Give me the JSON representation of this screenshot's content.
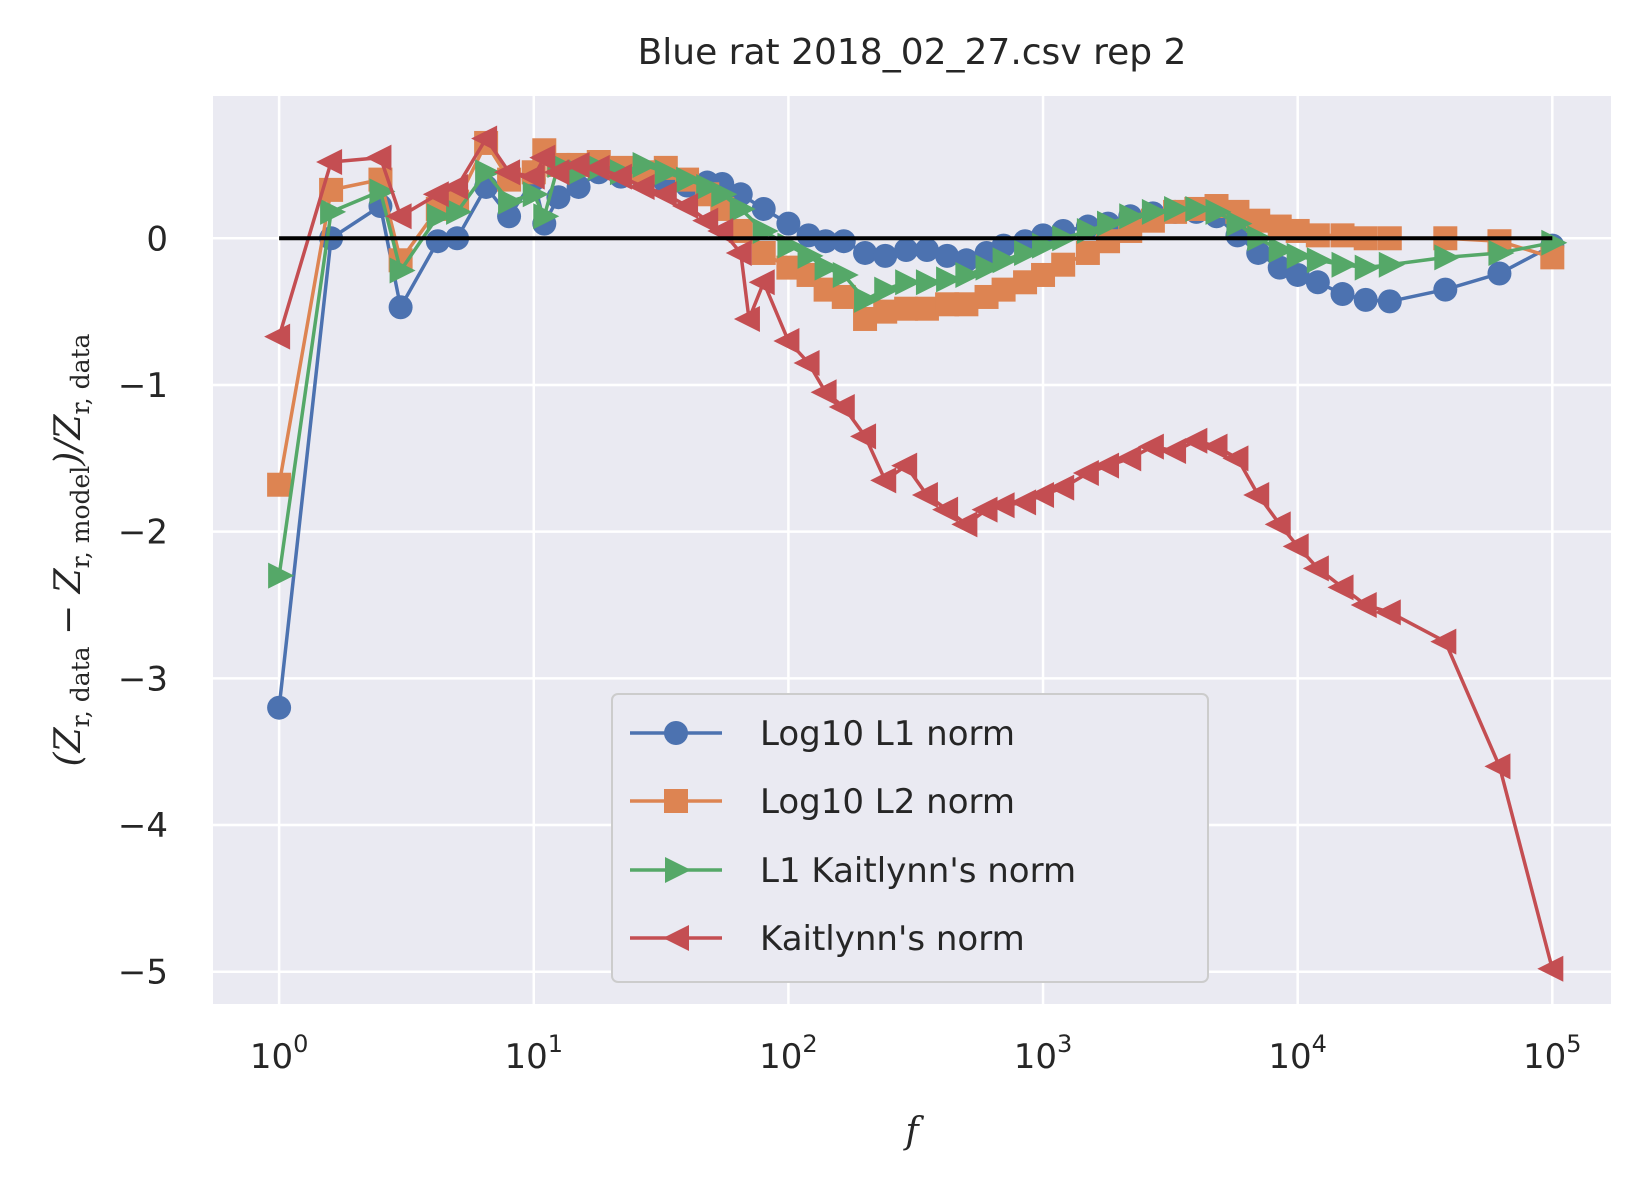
{
  "chart_data": {
    "type": "line",
    "title": "Blue rat 2018_02_27.csv rep 2",
    "xlabel": "f",
    "ylabel_parts": [
      "(Z",
      "r, data",
      " − Z",
      "r, model",
      ")/Z",
      "r, data"
    ],
    "x_scale": "log",
    "xlim": [
      0.55,
      170000
    ],
    "ylim": [
      -5.22,
      0.97
    ],
    "x_ticks": [
      {
        "value": 1,
        "base": "10",
        "exp": "0"
      },
      {
        "value": 10,
        "base": "10",
        "exp": "1"
      },
      {
        "value": 100,
        "base": "10",
        "exp": "2"
      },
      {
        "value": 1000,
        "base": "10",
        "exp": "3"
      },
      {
        "value": 10000,
        "base": "10",
        "exp": "4"
      },
      {
        "value": 100000,
        "base": "10",
        "exp": "5"
      }
    ],
    "y_ticks": [
      {
        "value": 0,
        "label": "0"
      },
      {
        "value": -1,
        "label": "−1"
      },
      {
        "value": -2,
        "label": "−2"
      },
      {
        "value": -3,
        "label": "−3"
      },
      {
        "value": -4,
        "label": "−4"
      },
      {
        "value": -5,
        "label": "−5"
      }
    ],
    "grid": true,
    "legend_position": "lower center",
    "colors": {
      "plot_bg": "#EAEAF2",
      "grid": "#FFFFFF",
      "reference": "#000000"
    },
    "reference_line": {
      "x": [
        1,
        100000
      ],
      "y": [
        0,
        0
      ]
    },
    "series": [
      {
        "name": "Log10 L1 norm",
        "color": "#4C72B0",
        "marker": "circle",
        "points": [
          [
            1,
            -3.2
          ],
          [
            1.6,
            0.0
          ],
          [
            2.5,
            0.22
          ],
          [
            3,
            -0.47
          ],
          [
            4.2,
            -0.02
          ],
          [
            5,
            0.0
          ],
          [
            6.5,
            0.35
          ],
          [
            8,
            0.15
          ],
          [
            10,
            0.4
          ],
          [
            11,
            0.1
          ],
          [
            12.5,
            0.28
          ],
          [
            15,
            0.35
          ],
          [
            18,
            0.45
          ],
          [
            22,
            0.42
          ],
          [
            27,
            0.4
          ],
          [
            33,
            0.38
          ],
          [
            40,
            0.36
          ],
          [
            48,
            0.38
          ],
          [
            55,
            0.37
          ],
          [
            65,
            0.3
          ],
          [
            80,
            0.2
          ],
          [
            100,
            0.1
          ],
          [
            120,
            0.02
          ],
          [
            140,
            -0.02
          ],
          [
            165,
            -0.02
          ],
          [
            200,
            -0.1
          ],
          [
            240,
            -0.12
          ],
          [
            290,
            -0.08
          ],
          [
            350,
            -0.08
          ],
          [
            420,
            -0.12
          ],
          [
            500,
            -0.15
          ],
          [
            600,
            -0.1
          ],
          [
            700,
            -0.05
          ],
          [
            850,
            -0.02
          ],
          [
            1000,
            0.02
          ],
          [
            1200,
            0.05
          ],
          [
            1500,
            0.08
          ],
          [
            1800,
            0.1
          ],
          [
            2200,
            0.15
          ],
          [
            2700,
            0.17
          ],
          [
            3300,
            0.18
          ],
          [
            4000,
            0.18
          ],
          [
            4800,
            0.15
          ],
          [
            5800,
            0.02
          ],
          [
            7000,
            -0.1
          ],
          [
            8500,
            -0.2
          ],
          [
            10000,
            -0.25
          ],
          [
            12000,
            -0.3
          ],
          [
            15000,
            -0.38
          ],
          [
            18500,
            -0.42
          ],
          [
            23000,
            -0.43
          ],
          [
            38000,
            -0.35
          ],
          [
            62000,
            -0.24
          ],
          [
            100000,
            -0.05
          ]
        ]
      },
      {
        "name": "Log10 L2 norm",
        "color": "#DD8452",
        "marker": "square",
        "points": [
          [
            1,
            -1.68
          ],
          [
            1.6,
            0.33
          ],
          [
            2.5,
            0.4
          ],
          [
            3,
            -0.15
          ],
          [
            4.2,
            0.2
          ],
          [
            5,
            0.25
          ],
          [
            6.5,
            0.65
          ],
          [
            8,
            0.4
          ],
          [
            10,
            0.45
          ],
          [
            11,
            0.6
          ],
          [
            12.5,
            0.5
          ],
          [
            15,
            0.5
          ],
          [
            18,
            0.52
          ],
          [
            22,
            0.48
          ],
          [
            27,
            0.45
          ],
          [
            33,
            0.48
          ],
          [
            40,
            0.4
          ],
          [
            48,
            0.3
          ],
          [
            55,
            0.2
          ],
          [
            65,
            0.05
          ],
          [
            80,
            -0.1
          ],
          [
            100,
            -0.2
          ],
          [
            120,
            -0.25
          ],
          [
            140,
            -0.35
          ],
          [
            165,
            -0.4
          ],
          [
            200,
            -0.55
          ],
          [
            240,
            -0.5
          ],
          [
            290,
            -0.48
          ],
          [
            350,
            -0.48
          ],
          [
            420,
            -0.45
          ],
          [
            500,
            -0.45
          ],
          [
            600,
            -0.4
          ],
          [
            700,
            -0.35
          ],
          [
            850,
            -0.3
          ],
          [
            1000,
            -0.25
          ],
          [
            1200,
            -0.18
          ],
          [
            1500,
            -0.1
          ],
          [
            1800,
            -0.02
          ],
          [
            2200,
            0.05
          ],
          [
            2700,
            0.12
          ],
          [
            3300,
            0.18
          ],
          [
            4000,
            0.2
          ],
          [
            4800,
            0.22
          ],
          [
            5800,
            0.18
          ],
          [
            7000,
            0.12
          ],
          [
            8500,
            0.08
          ],
          [
            10000,
            0.05
          ],
          [
            12000,
            0.02
          ],
          [
            15000,
            0.02
          ],
          [
            18500,
            0.0
          ],
          [
            23000,
            0.0
          ],
          [
            38000,
            0.0
          ],
          [
            62000,
            -0.02
          ],
          [
            100000,
            -0.13
          ]
        ]
      },
      {
        "name": "L1 Kaitlynn's norm",
        "color": "#55A868",
        "marker": "triangle-right",
        "points": [
          [
            1,
            -2.3
          ],
          [
            1.6,
            0.18
          ],
          [
            2.5,
            0.32
          ],
          [
            3,
            -0.22
          ],
          [
            4.2,
            0.15
          ],
          [
            5,
            0.18
          ],
          [
            6.5,
            0.45
          ],
          [
            8,
            0.25
          ],
          [
            10,
            0.3
          ],
          [
            11,
            0.15
          ],
          [
            12.5,
            0.5
          ],
          [
            15,
            0.45
          ],
          [
            18,
            0.48
          ],
          [
            22,
            0.45
          ],
          [
            27,
            0.5
          ],
          [
            33,
            0.45
          ],
          [
            40,
            0.4
          ],
          [
            48,
            0.35
          ],
          [
            55,
            0.3
          ],
          [
            65,
            0.2
          ],
          [
            80,
            0.05
          ],
          [
            100,
            -0.05
          ],
          [
            120,
            -0.12
          ],
          [
            140,
            -0.2
          ],
          [
            165,
            -0.25
          ],
          [
            200,
            -0.42
          ],
          [
            240,
            -0.35
          ],
          [
            290,
            -0.3
          ],
          [
            350,
            -0.3
          ],
          [
            420,
            -0.28
          ],
          [
            500,
            -0.25
          ],
          [
            600,
            -0.2
          ],
          [
            700,
            -0.15
          ],
          [
            850,
            -0.1
          ],
          [
            1000,
            -0.05
          ],
          [
            1200,
            0.0
          ],
          [
            1500,
            0.05
          ],
          [
            1800,
            0.1
          ],
          [
            2200,
            0.15
          ],
          [
            2700,
            0.18
          ],
          [
            3300,
            0.2
          ],
          [
            4000,
            0.2
          ],
          [
            4800,
            0.18
          ],
          [
            5800,
            0.1
          ],
          [
            7000,
            0.0
          ],
          [
            8500,
            -0.08
          ],
          [
            10000,
            -0.12
          ],
          [
            12000,
            -0.15
          ],
          [
            15000,
            -0.18
          ],
          [
            18500,
            -0.2
          ],
          [
            23000,
            -0.18
          ],
          [
            38000,
            -0.13
          ],
          [
            62000,
            -0.1
          ],
          [
            100000,
            -0.03
          ]
        ]
      },
      {
        "name": "Kaitlynn's norm",
        "color": "#C44E52",
        "marker": "triangle-left",
        "points": [
          [
            1,
            -0.67
          ],
          [
            1.6,
            0.52
          ],
          [
            2.5,
            0.55
          ],
          [
            3,
            0.15
          ],
          [
            4.2,
            0.3
          ],
          [
            5,
            0.35
          ],
          [
            6.5,
            0.68
          ],
          [
            8,
            0.45
          ],
          [
            10,
            0.42
          ],
          [
            11,
            0.55
          ],
          [
            12.5,
            0.45
          ],
          [
            15,
            0.5
          ],
          [
            18,
            0.48
          ],
          [
            22,
            0.42
          ],
          [
            27,
            0.35
          ],
          [
            33,
            0.3
          ],
          [
            40,
            0.22
          ],
          [
            48,
            0.12
          ],
          [
            55,
            0.05
          ],
          [
            65,
            -0.1
          ],
          [
            70,
            -0.55
          ],
          [
            80,
            -0.3
          ],
          [
            100,
            -0.7
          ],
          [
            120,
            -0.85
          ],
          [
            140,
            -1.05
          ],
          [
            165,
            -1.15
          ],
          [
            200,
            -1.35
          ],
          [
            240,
            -1.65
          ],
          [
            290,
            -1.55
          ],
          [
            350,
            -1.75
          ],
          [
            420,
            -1.85
          ],
          [
            500,
            -1.95
          ],
          [
            600,
            -1.85
          ],
          [
            700,
            -1.82
          ],
          [
            850,
            -1.8
          ],
          [
            1000,
            -1.75
          ],
          [
            1200,
            -1.7
          ],
          [
            1500,
            -1.6
          ],
          [
            1800,
            -1.55
          ],
          [
            2200,
            -1.5
          ],
          [
            2700,
            -1.42
          ],
          [
            3300,
            -1.45
          ],
          [
            4000,
            -1.38
          ],
          [
            4800,
            -1.42
          ],
          [
            5800,
            -1.5
          ],
          [
            7000,
            -1.75
          ],
          [
            8500,
            -1.95
          ],
          [
            10000,
            -2.1
          ],
          [
            12000,
            -2.25
          ],
          [
            15000,
            -2.38
          ],
          [
            18500,
            -2.5
          ],
          [
            23000,
            -2.55
          ],
          [
            38000,
            -2.75
          ],
          [
            62000,
            -3.6
          ],
          [
            100000,
            -4.98
          ]
        ]
      }
    ]
  }
}
